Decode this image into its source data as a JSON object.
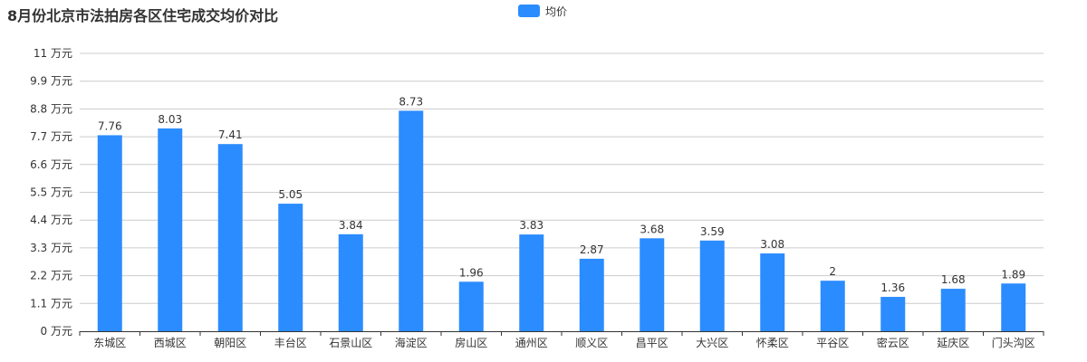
{
  "chart_data": {
    "type": "bar",
    "title": "8月份北京市法拍房各区住宅成交均价对比",
    "legend": {
      "position": "top-center",
      "entries": [
        "均价"
      ]
    },
    "categories": [
      "东城区",
      "西城区",
      "朝阳区",
      "丰台区",
      "石景山区",
      "海淀区",
      "房山区",
      "通州区",
      "顺义区",
      "昌平区",
      "大兴区",
      "怀柔区",
      "平谷区",
      "密云区",
      "延庆区",
      "门头沟区"
    ],
    "series": [
      {
        "name": "均价",
        "values": [
          7.76,
          8.03,
          7.41,
          5.05,
          3.84,
          8.73,
          1.96,
          3.83,
          2.87,
          3.68,
          3.59,
          3.08,
          2,
          1.36,
          1.68,
          1.89
        ],
        "labels": [
          "7.76",
          "8.03",
          "7.41",
          "5.05",
          "3.84",
          "8.73",
          "1.96",
          "3.83",
          "2.87",
          "3.68",
          "3.59",
          "3.08",
          "2",
          "1.36",
          "1.68",
          "1.89"
        ],
        "color": "#2b8cff"
      }
    ],
    "y_ticks": [
      0,
      1.1,
      2.2,
      3.3,
      4.4,
      5.5,
      6.6,
      7.7,
      8.8,
      9.9,
      11
    ],
    "y_tick_labels": [
      "0 万元",
      "1.1 万元",
      "2.2 万元",
      "3.3 万元",
      "4.4 万元",
      "5.5 万元",
      "6.6 万元",
      "7.7 万元",
      "8.8 万元",
      "9.9 万元",
      "11 万元"
    ],
    "ylim": [
      0,
      11
    ],
    "grid": true,
    "colors": {
      "bar": "#2b8cff",
      "grid": "#cccccc",
      "axis": "#333333"
    }
  }
}
